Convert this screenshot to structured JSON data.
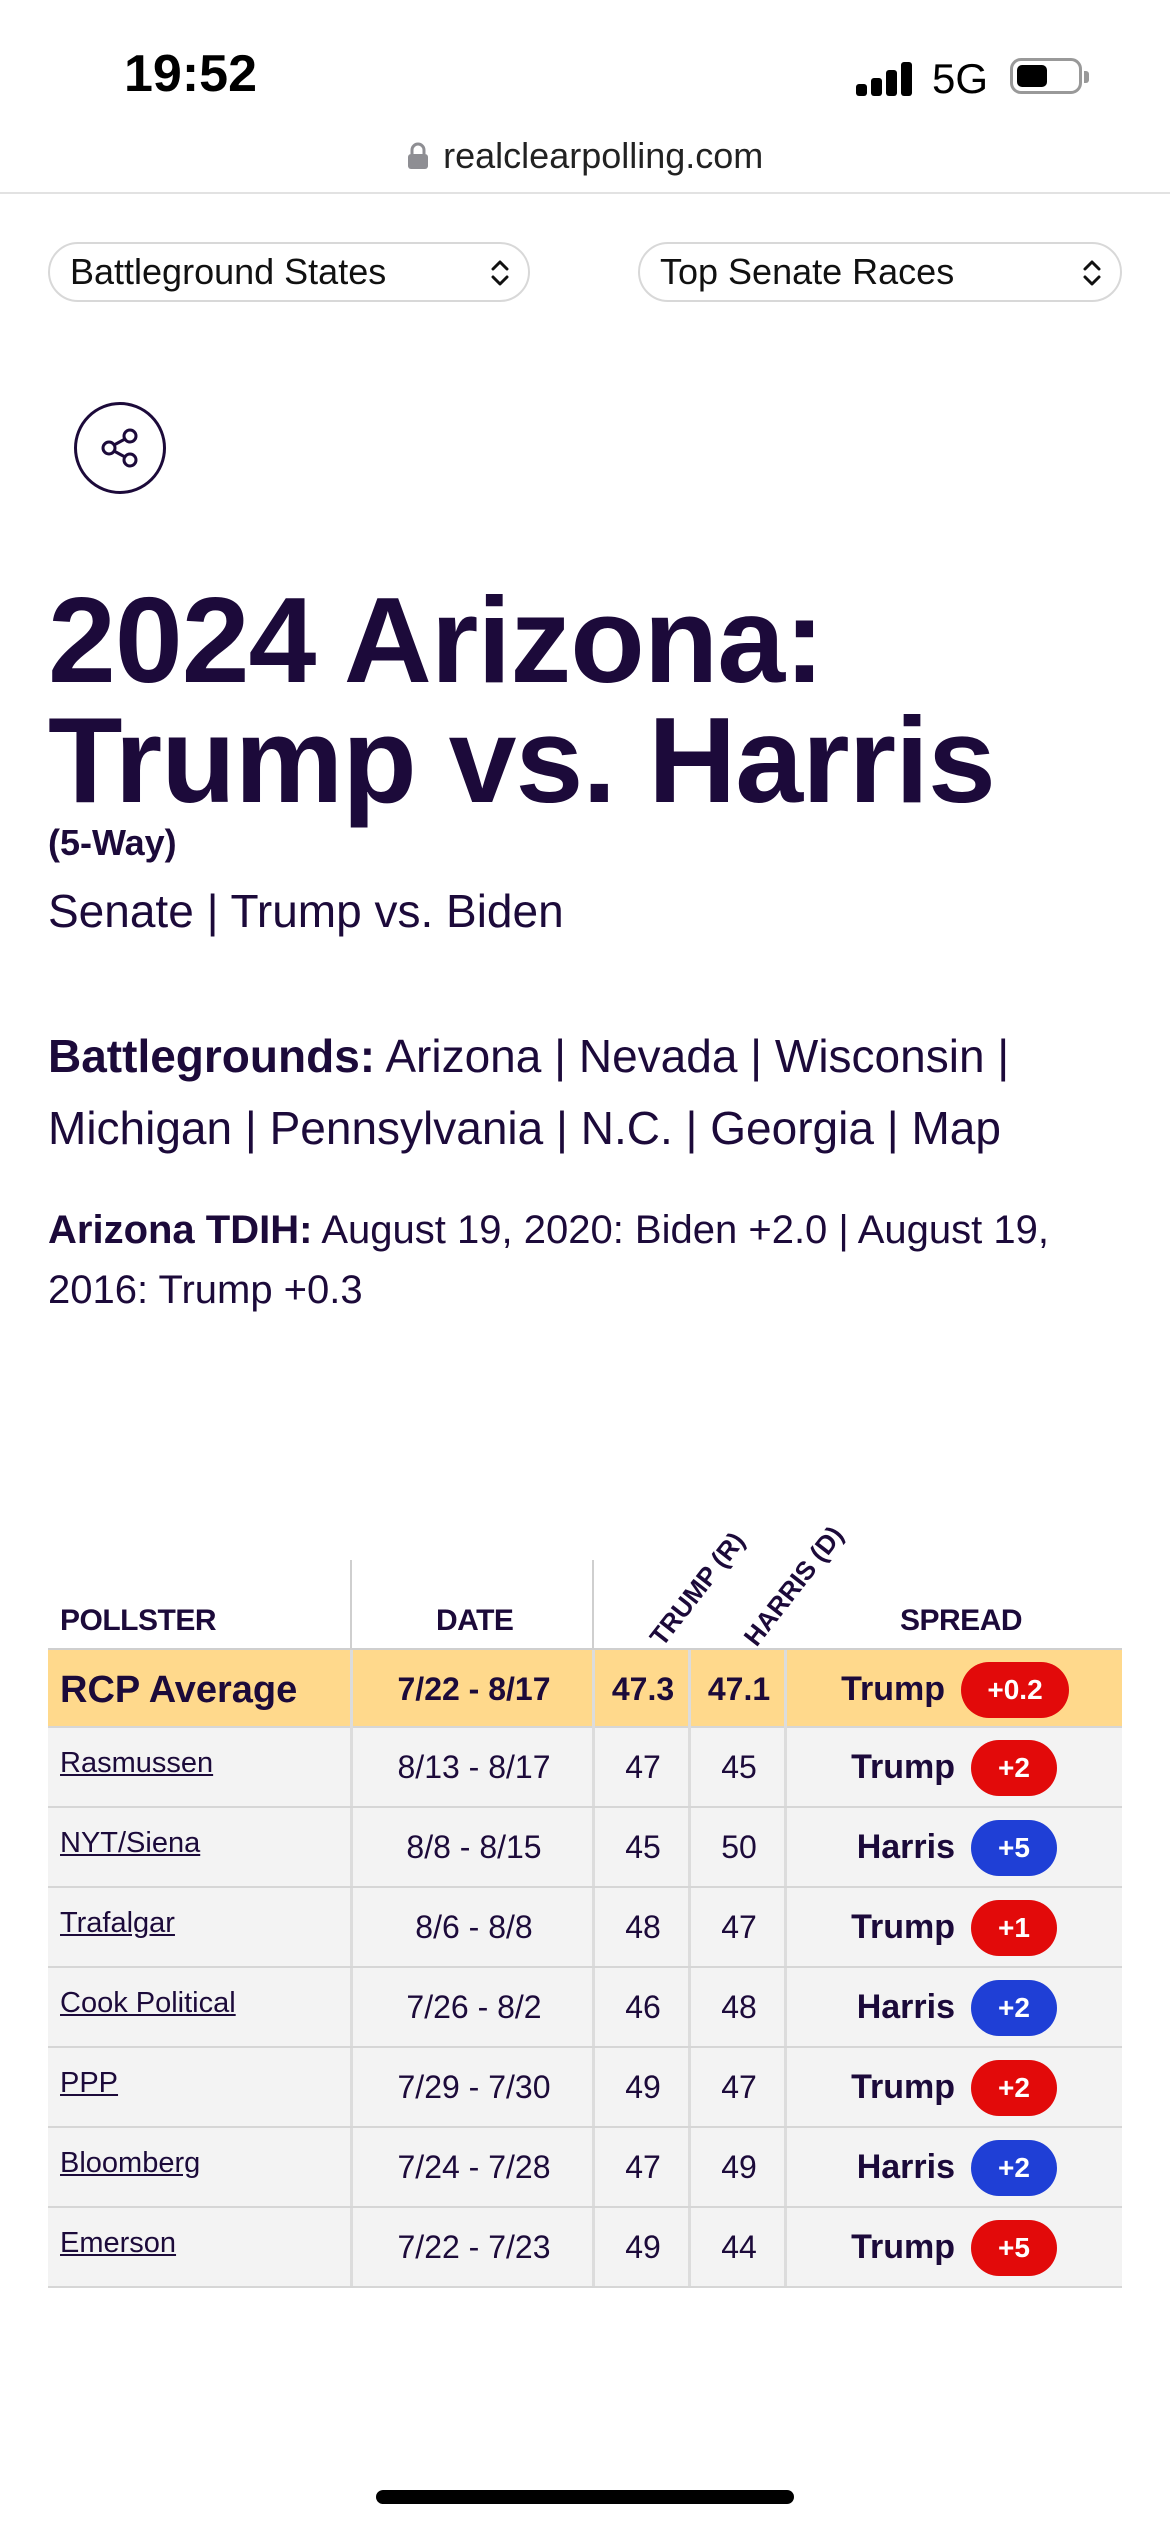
{
  "status": {
    "time": "19:52",
    "network": "5G"
  },
  "browser": {
    "url": "realclearpolling.com"
  },
  "selectors": {
    "left": "Battleground States",
    "right": "Top Senate Races"
  },
  "page": {
    "title": "2024 Arizona: Trump vs. Harris",
    "subtitle": "(5-Way)",
    "links": [
      "Senate",
      "Trump vs. Biden"
    ],
    "battlegrounds_label": "Battlegrounds:",
    "battlegrounds": [
      "Arizona",
      "Nevada",
      "Wisconsin",
      "Michigan",
      "Pennsylvania",
      "N.C.",
      "Georgia",
      "Map"
    ],
    "tdih_label": "Arizona TDIH:",
    "tdih_text": "August 19, 2020: Biden +2.0 | August 19, 2016: Trump +0.3"
  },
  "table": {
    "headers": {
      "pollster": "POLLSTER",
      "date": "DATE",
      "trump": "TRUMP (R)",
      "harris": "HARRIS (D)",
      "spread": "SPREAD"
    },
    "colors": {
      "trump": "#e20a0a",
      "harris": "#1f3fd6",
      "avg_bg": "#ffd98c"
    },
    "average": {
      "pollster": "RCP Average",
      "date": "7/22 - 8/17",
      "trump": "47.3",
      "harris": "47.1",
      "spread_leader": "Trump",
      "spread_value": "+0.2"
    },
    "rows": [
      {
        "pollster": "Rasmussen",
        "date": "8/13 - 8/17",
        "trump": "47",
        "harris": "45",
        "spread_leader": "Trump",
        "spread_value": "+2"
      },
      {
        "pollster": "NYT/Siena",
        "date": "8/8 - 8/15",
        "trump": "45",
        "harris": "50",
        "spread_leader": "Harris",
        "spread_value": "+5"
      },
      {
        "pollster": "Trafalgar",
        "date": "8/6 - 8/8",
        "trump": "48",
        "harris": "47",
        "spread_leader": "Trump",
        "spread_value": "+1"
      },
      {
        "pollster": "Cook Political",
        "date": "7/26 - 8/2",
        "trump": "46",
        "harris": "48",
        "spread_leader": "Harris",
        "spread_value": "+2"
      },
      {
        "pollster": "PPP",
        "date": "7/29 - 7/30",
        "trump": "49",
        "harris": "47",
        "spread_leader": "Trump",
        "spread_value": "+2"
      },
      {
        "pollster": "Bloomberg",
        "date": "7/24 - 7/28",
        "trump": "47",
        "harris": "49",
        "spread_leader": "Harris",
        "spread_value": "+2"
      },
      {
        "pollster": "Emerson",
        "date": "7/22 - 7/23",
        "trump": "49",
        "harris": "44",
        "spread_leader": "Trump",
        "spread_value": "+5"
      }
    ]
  }
}
